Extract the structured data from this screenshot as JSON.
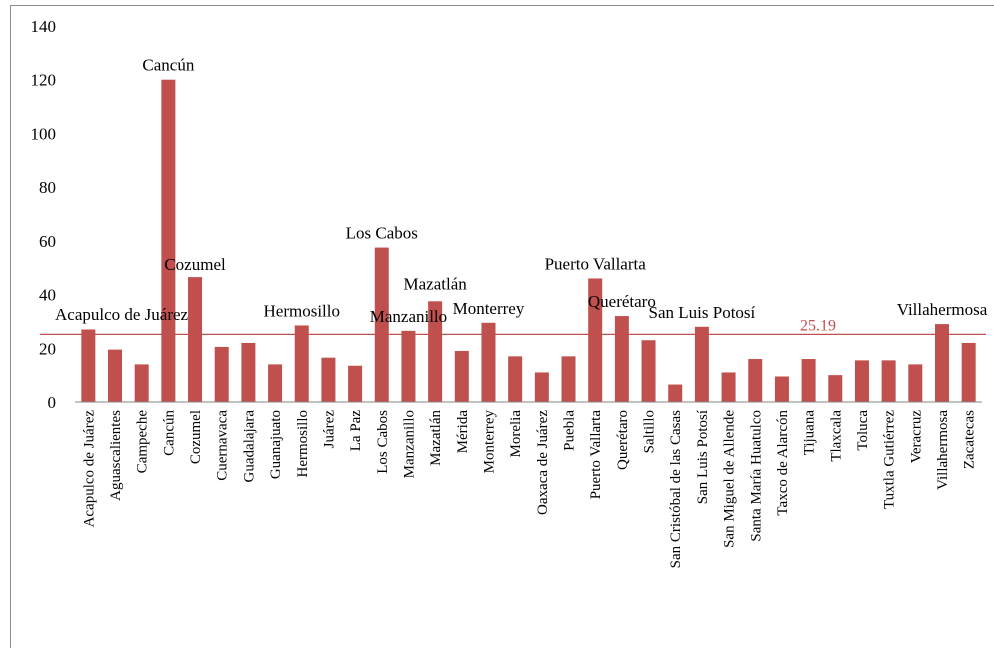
{
  "chart_data": {
    "type": "bar",
    "title": "",
    "xlabel": "",
    "ylabel": "",
    "ylim": [
      0,
      140
    ],
    "yticks": [
      0,
      20,
      40,
      60,
      80,
      100,
      120,
      140
    ],
    "categories": [
      "Acapulco de Juárez",
      "Aguascalientes",
      "Campeche",
      "Cancún",
      "Cozumel",
      "Cuernavaca",
      "Guadalajara",
      "Guanajuato",
      "Hermosillo",
      "Juárez",
      "La Paz",
      "Los Cabos",
      "Manzanillo",
      "Mazatlán",
      "Mérida",
      "Monterrey",
      "Morelia",
      "Oaxaca de Juárez",
      "Puebla",
      "Puerto Vallarta",
      "Querétaro",
      "Saltillo",
      "San Cristóbal de las Casas",
      "San Luis Potosí",
      "San Miguel de Allende",
      "Santa María Huatulco",
      "Taxco de Alarcón",
      "Tijuana",
      "Tlaxcala",
      "Toluca",
      "Tuxtla Gutiérrez",
      "Veracruz",
      "Villahermosa",
      "Zacatecas"
    ],
    "values": [
      27,
      19.5,
      14,
      120,
      46.5,
      20.5,
      22,
      14,
      28.5,
      16.5,
      13.5,
      57.5,
      26.5,
      37.5,
      19,
      29.5,
      17,
      11,
      17,
      46,
      32,
      23,
      6.5,
      28,
      11,
      16,
      9.5,
      16,
      10,
      15.5,
      15.5,
      14,
      29,
      22
    ],
    "annotations": [
      {
        "category": "Acapulco de Juárez",
        "text": "Acapulco de Juárez"
      },
      {
        "category": "Cancún",
        "text": "Cancún"
      },
      {
        "category": "Cozumel",
        "text": "Cozumel"
      },
      {
        "category": "Hermosillo",
        "text": "Hermosillo"
      },
      {
        "category": "Los Cabos",
        "text": "Los Cabos"
      },
      {
        "category": "Manzanillo",
        "text": "Manzanillo"
      },
      {
        "category": "Mazatlán",
        "text": "Mazatlán"
      },
      {
        "category": "Monterrey",
        "text": "Monterrey"
      },
      {
        "category": "Puerto Vallarta",
        "text": "Puerto Vallarta"
      },
      {
        "category": "Querétaro",
        "text": "Querétaro"
      },
      {
        "category": "San Luis Potosí",
        "text": "San Luis Potosí"
      },
      {
        "category": "Villahermosa",
        "text": "Villahermosa"
      }
    ],
    "reference_line": {
      "value": 25.19,
      "label": "25.19"
    },
    "colors": {
      "bar": "#c0504d",
      "reference_line": "#c0504d",
      "reference_label": "#c0504d",
      "axis": "#868686",
      "text": "#000000"
    },
    "grid": false,
    "legend": "none"
  }
}
